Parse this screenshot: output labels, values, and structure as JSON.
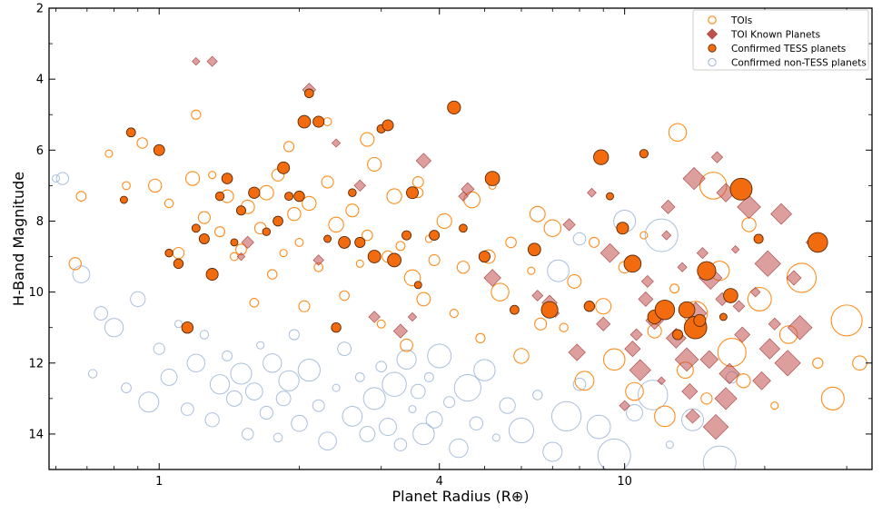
{
  "chart_data": {
    "type": "scatter",
    "xlabel": "Planet Radius (R⊕)",
    "ylabel": "H-Band Magnitude",
    "x_scale": "log",
    "xlim": [
      0.58,
      34
    ],
    "ylim": [
      15,
      2
    ],
    "y_inverted": true,
    "x_ticks": [
      1,
      4,
      10
    ],
    "x_tick_labels": [
      "1",
      "4",
      "10"
    ],
    "y_ticks": [
      2,
      4,
      6,
      8,
      10,
      12,
      14
    ],
    "y_tick_labels": [
      "2",
      "4",
      "6",
      "8",
      "10",
      "12",
      "14"
    ],
    "grid": false,
    "legend_position": "top-right",
    "colors": {
      "tois": "#ff8c1a",
      "known": "#c0504d",
      "tess": "#f26b0f",
      "nontess": "#a9bfdc"
    },
    "series": [
      {
        "name": "TOIs",
        "marker": "open-circle",
        "points": [
          [
            0.78,
            6.1
          ],
          [
            0.68,
            7.3
          ],
          [
            0.66,
            9.2
          ],
          [
            0.85,
            7.0
          ],
          [
            0.92,
            5.8
          ],
          [
            0.98,
            7.0
          ],
          [
            1.05,
            7.5
          ],
          [
            1.1,
            8.9
          ],
          [
            1.18,
            6.8
          ],
          [
            1.2,
            5.0
          ],
          [
            1.25,
            7.9
          ],
          [
            1.3,
            6.7
          ],
          [
            1.35,
            8.3
          ],
          [
            1.4,
            7.3
          ],
          [
            1.45,
            9.0
          ],
          [
            1.5,
            8.8
          ],
          [
            1.55,
            7.6
          ],
          [
            1.6,
            10.3
          ],
          [
            1.65,
            8.2
          ],
          [
            1.7,
            7.2
          ],
          [
            1.75,
            9.5
          ],
          [
            1.8,
            6.7
          ],
          [
            1.85,
            8.9
          ],
          [
            1.9,
            5.9
          ],
          [
            1.95,
            7.8
          ],
          [
            2.0,
            8.6
          ],
          [
            2.05,
            10.4
          ],
          [
            2.1,
            7.5
          ],
          [
            2.2,
            9.3
          ],
          [
            2.3,
            6.9
          ],
          [
            2.4,
            8.1
          ],
          [
            2.5,
            10.1
          ],
          [
            2.6,
            7.7
          ],
          [
            2.7,
            9.2
          ],
          [
            2.8,
            8.4
          ],
          [
            2.9,
            6.4
          ],
          [
            3.0,
            10.9
          ],
          [
            3.1,
            9.0
          ],
          [
            3.2,
            7.3
          ],
          [
            3.3,
            8.7
          ],
          [
            3.4,
            11.5
          ],
          [
            3.5,
            9.6
          ],
          [
            3.6,
            7.2
          ],
          [
            3.7,
            10.2
          ],
          [
            3.8,
            8.5
          ],
          [
            3.9,
            9.1
          ],
          [
            4.1,
            8.0
          ],
          [
            4.3,
            10.6
          ],
          [
            4.5,
            9.3
          ],
          [
            4.7,
            7.4
          ],
          [
            4.9,
            11.3
          ],
          [
            5.1,
            9.0
          ],
          [
            5.4,
            10.0
          ],
          [
            5.7,
            8.6
          ],
          [
            6.0,
            11.8
          ],
          [
            6.3,
            9.4
          ],
          [
            6.6,
            10.9
          ],
          [
            7.0,
            8.2
          ],
          [
            7.4,
            11.0
          ],
          [
            7.8,
            9.7
          ],
          [
            8.2,
            12.5
          ],
          [
            8.6,
            8.6
          ],
          [
            9.0,
            10.4
          ],
          [
            9.5,
            11.9
          ],
          [
            10.0,
            9.3
          ],
          [
            10.5,
            12.8
          ],
          [
            11.0,
            8.4
          ],
          [
            11.6,
            11.1
          ],
          [
            12.2,
            13.5
          ],
          [
            12.8,
            9.9
          ],
          [
            13.5,
            12.2
          ],
          [
            14.2,
            10.6
          ],
          [
            15.0,
            13.0
          ],
          [
            16.0,
            9.4
          ],
          [
            17.0,
            11.7
          ],
          [
            18.0,
            12.5
          ],
          [
            19.5,
            10.2
          ],
          [
            21.0,
            13.2
          ],
          [
            22.5,
            11.2
          ],
          [
            24.0,
            9.6
          ],
          [
            26.0,
            12.0
          ],
          [
            28.0,
            13.0
          ],
          [
            30.0,
            10.8
          ],
          [
            32.0,
            12.0
          ],
          [
            13.0,
            5.5
          ],
          [
            15.5,
            7.0
          ],
          [
            18.5,
            8.1
          ],
          [
            6.5,
            7.8
          ],
          [
            5.2,
            7.0
          ],
          [
            3.6,
            6.9
          ],
          [
            2.8,
            5.7
          ],
          [
            2.3,
            5.2
          ]
        ]
      },
      {
        "name": "TOI Known Planets",
        "marker": "diamond",
        "points": [
          [
            1.2,
            3.5
          ],
          [
            1.3,
            3.5
          ],
          [
            2.1,
            4.3
          ],
          [
            2.4,
            5.8
          ],
          [
            2.7,
            7.0
          ],
          [
            3.7,
            6.3
          ],
          [
            4.5,
            7.3
          ],
          [
            4.6,
            7.1
          ],
          [
            5.2,
            9.6
          ],
          [
            6.5,
            10.1
          ],
          [
            6.9,
            10.3
          ],
          [
            7.1,
            10.6
          ],
          [
            7.6,
            8.1
          ],
          [
            7.9,
            11.7
          ],
          [
            8.5,
            7.2
          ],
          [
            9.0,
            10.9
          ],
          [
            9.3,
            8.9
          ],
          [
            10.0,
            13.2
          ],
          [
            10.4,
            11.6
          ],
          [
            10.8,
            12.2
          ],
          [
            11.2,
            9.7
          ],
          [
            11.6,
            10.8
          ],
          [
            12.0,
            12.5
          ],
          [
            12.4,
            7.6
          ],
          [
            12.9,
            11.3
          ],
          [
            13.3,
            9.3
          ],
          [
            13.8,
            12.8
          ],
          [
            14.2,
            10.6
          ],
          [
            14.7,
            8.9
          ],
          [
            15.2,
            11.9
          ],
          [
            15.7,
            13.8
          ],
          [
            16.2,
            10.2
          ],
          [
            16.8,
            12.3
          ],
          [
            17.3,
            8.8
          ],
          [
            17.9,
            11.2
          ],
          [
            18.5,
            7.6
          ],
          [
            19.1,
            10.0
          ],
          [
            19.7,
            12.5
          ],
          [
            20.3,
            9.2
          ],
          [
            21.0,
            10.9
          ],
          [
            21.7,
            7.8
          ],
          [
            22.4,
            12.0
          ],
          [
            23.1,
            9.6
          ],
          [
            23.8,
            11.0
          ],
          [
            25.0,
            8.6
          ],
          [
            14.0,
            13.5
          ],
          [
            16.5,
            13.0
          ],
          [
            12.3,
            8.4
          ],
          [
            11.1,
            10.2
          ],
          [
            15.3,
            9.6
          ],
          [
            17.6,
            10.4
          ],
          [
            20.5,
            11.6
          ],
          [
            13.6,
            11.9
          ],
          [
            10.6,
            11.2
          ],
          [
            1.55,
            8.6
          ],
          [
            1.5,
            9.0
          ],
          [
            2.2,
            9.1
          ],
          [
            3.3,
            11.1
          ],
          [
            3.5,
            10.7
          ],
          [
            2.9,
            10.7
          ],
          [
            14.1,
            6.8
          ],
          [
            15.8,
            6.2
          ],
          [
            16.5,
            7.2
          ]
        ]
      },
      {
        "name": "Confirmed TESS planets",
        "marker": "filled-circle",
        "points": [
          [
            0.84,
            7.4
          ],
          [
            0.87,
            5.5
          ],
          [
            1.0,
            6.0
          ],
          [
            1.05,
            8.9
          ],
          [
            1.1,
            9.2
          ],
          [
            1.15,
            11.0
          ],
          [
            1.2,
            8.2
          ],
          [
            1.25,
            8.5
          ],
          [
            1.3,
            9.5
          ],
          [
            1.35,
            7.3
          ],
          [
            1.4,
            6.8
          ],
          [
            1.45,
            8.6
          ],
          [
            1.5,
            7.7
          ],
          [
            1.6,
            7.2
          ],
          [
            1.7,
            8.3
          ],
          [
            1.8,
            8.0
          ],
          [
            1.85,
            6.5
          ],
          [
            1.9,
            7.3
          ],
          [
            2.0,
            7.3
          ],
          [
            2.05,
            5.2
          ],
          [
            2.1,
            4.4
          ],
          [
            2.2,
            5.2
          ],
          [
            2.3,
            8.5
          ],
          [
            2.4,
            11.0
          ],
          [
            2.5,
            8.6
          ],
          [
            2.6,
            7.2
          ],
          [
            2.7,
            8.6
          ],
          [
            2.9,
            9.0
          ],
          [
            3.0,
            5.4
          ],
          [
            3.1,
            5.3
          ],
          [
            3.2,
            9.1
          ],
          [
            3.4,
            8.4
          ],
          [
            3.5,
            7.2
          ],
          [
            3.6,
            9.8
          ],
          [
            3.9,
            8.4
          ],
          [
            4.3,
            4.8
          ],
          [
            4.5,
            8.2
          ],
          [
            5.0,
            9.0
          ],
          [
            5.2,
            6.8
          ],
          [
            5.8,
            10.5
          ],
          [
            6.4,
            8.8
          ],
          [
            6.9,
            10.5
          ],
          [
            8.4,
            10.4
          ],
          [
            8.9,
            6.2
          ],
          [
            9.3,
            7.3
          ],
          [
            9.9,
            8.2
          ],
          [
            10.4,
            9.2
          ],
          [
            11.0,
            6.1
          ],
          [
            11.6,
            10.7
          ],
          [
            12.2,
            10.5
          ],
          [
            13.0,
            11.2
          ],
          [
            13.6,
            10.5
          ],
          [
            14.2,
            11.0
          ],
          [
            14.5,
            10.8
          ],
          [
            15.0,
            9.4
          ],
          [
            16.3,
            10.7
          ],
          [
            16.9,
            10.1
          ],
          [
            17.8,
            7.1
          ],
          [
            19.4,
            8.5
          ],
          [
            26.0,
            8.6
          ]
        ]
      },
      {
        "name": "Confirmed non-TESS planets",
        "marker": "open-circle",
        "points": [
          [
            0.6,
            6.8
          ],
          [
            0.62,
            6.8
          ],
          [
            0.68,
            9.5
          ],
          [
            0.72,
            12.3
          ],
          [
            0.75,
            10.6
          ],
          [
            0.8,
            11.0
          ],
          [
            0.85,
            12.7
          ],
          [
            0.9,
            10.2
          ],
          [
            0.95,
            13.1
          ],
          [
            1.0,
            11.6
          ],
          [
            1.05,
            12.4
          ],
          [
            1.1,
            10.9
          ],
          [
            1.15,
            13.3
          ],
          [
            1.2,
            12.0
          ],
          [
            1.25,
            11.2
          ],
          [
            1.3,
            13.6
          ],
          [
            1.35,
            12.6
          ],
          [
            1.4,
            11.8
          ],
          [
            1.45,
            13.0
          ],
          [
            1.5,
            12.3
          ],
          [
            1.55,
            14.0
          ],
          [
            1.6,
            12.8
          ],
          [
            1.65,
            11.5
          ],
          [
            1.7,
            13.4
          ],
          [
            1.75,
            12.0
          ],
          [
            1.8,
            14.1
          ],
          [
            1.85,
            13.0
          ],
          [
            1.9,
            12.5
          ],
          [
            1.95,
            11.2
          ],
          [
            2.0,
            13.7
          ],
          [
            2.1,
            12.2
          ],
          [
            2.2,
            13.2
          ],
          [
            2.3,
            14.2
          ],
          [
            2.4,
            12.7
          ],
          [
            2.5,
            11.6
          ],
          [
            2.6,
            13.5
          ],
          [
            2.7,
            12.4
          ],
          [
            2.8,
            14.0
          ],
          [
            2.9,
            13.0
          ],
          [
            3.0,
            12.1
          ],
          [
            3.1,
            13.8
          ],
          [
            3.2,
            12.6
          ],
          [
            3.3,
            14.3
          ],
          [
            3.4,
            11.9
          ],
          [
            3.5,
            13.3
          ],
          [
            3.6,
            12.8
          ],
          [
            3.7,
            14.0
          ],
          [
            3.8,
            12.4
          ],
          [
            3.9,
            13.6
          ],
          [
            4.0,
            11.8
          ],
          [
            4.2,
            13.1
          ],
          [
            4.4,
            14.4
          ],
          [
            4.6,
            12.7
          ],
          [
            4.8,
            13.7
          ],
          [
            5.0,
            12.2
          ],
          [
            5.3,
            14.1
          ],
          [
            5.6,
            13.2
          ],
          [
            6.0,
            13.9
          ],
          [
            6.5,
            12.9
          ],
          [
            7.0,
            14.5
          ],
          [
            7.5,
            13.5
          ],
          [
            8.0,
            12.6
          ],
          [
            8.8,
            13.8
          ],
          [
            9.5,
            14.6
          ],
          [
            10.5,
            13.4
          ],
          [
            11.5,
            12.9
          ],
          [
            12.5,
            14.3
          ],
          [
            14.0,
            13.6
          ],
          [
            16.0,
            14.8
          ],
          [
            17.0,
            12.4
          ],
          [
            10.0,
            8.0
          ],
          [
            12.0,
            8.4
          ],
          [
            8.0,
            8.5
          ],
          [
            7.2,
            9.4
          ]
        ]
      }
    ]
  }
}
